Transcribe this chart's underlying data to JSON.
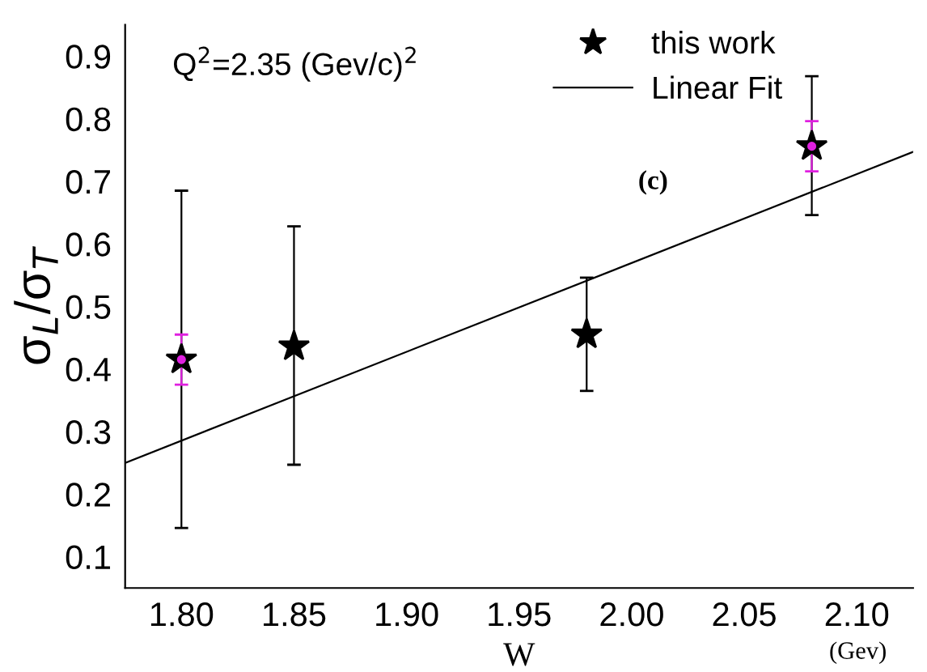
{
  "chart_data": {
    "type": "scatter",
    "xlabel": "W",
    "ylabel": "σ$_{L}$/σ$_{T}$",
    "annotations": [
      "Q$^{2}$=2.35 (Gev/c)$^{2}$",
      "(c)",
      "(Gev)"
    ],
    "series": [
      {
        "name": "this work",
        "color": "#000000",
        "marker": "star",
        "x": [
          1.8,
          1.85,
          1.98,
          2.08
        ],
        "values": [
          0.415,
          0.436,
          0.455,
          0.756
        ],
        "errors": [
          [
            0.146,
            0.685
          ],
          [
            0.247,
            0.628
          ],
          [
            0.365,
            0.546
          ],
          [
            0.646,
            0.868
          ]
        ]
      },
      {
        "color": "#e020e0",
        "marker": "circle",
        "x": [
          1.8,
          2.08
        ],
        "values": [
          0.415,
          0.756
        ],
        "errors": [
          0.04,
          0.04
        ]
      },
      {
        "name": "Linear Fit",
        "type": "line",
        "color": "#000000",
        "line_style": "solid",
        "marker": "none",
        "x": [
          1.775,
          2.125
        ],
        "values": [
          0.25,
          0.747
        ]
      }
    ],
    "xlim": [
      1.775,
      2.125
    ],
    "ylim": [
      0.05,
      0.95
    ],
    "xticks": [
      {
        "value": 1.8,
        "label": "1.80"
      },
      {
        "value": 1.85,
        "label": "1.85"
      },
      {
        "value": 1.9,
        "label": "1.90"
      },
      {
        "value": 1.95,
        "label": "1.95"
      },
      {
        "value": 2.0,
        "label": "2.00"
      },
      {
        "value": 2.05,
        "label": "2.05"
      },
      {
        "value": 2.1,
        "label": "2.10"
      }
    ],
    "yticks": [
      0.1,
      0.2,
      0.3,
      0.4,
      0.5,
      0.6,
      0.7,
      0.8,
      0.9
    ],
    "grid": false,
    "legend": "top right"
  }
}
